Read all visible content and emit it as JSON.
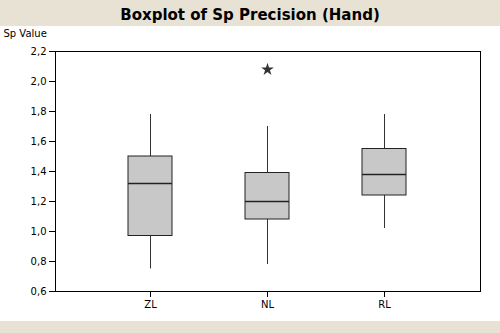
{
  "chart_data": {
    "type": "box",
    "title": "Boxplot of Sp Precision (Hand)",
    "ylabel": "Sp Value",
    "categories": [
      "ZL",
      "NL",
      "RL"
    ],
    "boxes": [
      {
        "med": 1.32,
        "q1": 0.97,
        "q3": 1.5,
        "whislo": 0.75,
        "whishi": 1.78,
        "fliers": []
      },
      {
        "med": 1.2,
        "q1": 1.08,
        "q3": 1.39,
        "whislo": 0.78,
        "whishi": 1.7,
        "fliers": [
          2.08
        ]
      },
      {
        "med": 1.38,
        "q1": 1.24,
        "q3": 1.55,
        "whislo": 1.02,
        "whishi": 1.78,
        "fliers": []
      }
    ],
    "color": "#c8c8c8",
    "grid": false,
    "ylim": [
      0.6,
      2.2
    ],
    "yticks": [
      {
        "value": 0.6,
        "label": "0,6"
      },
      {
        "value": 0.8,
        "label": "0,8"
      },
      {
        "value": 1.0,
        "label": "1,0"
      },
      {
        "value": 1.2,
        "label": "1,2"
      },
      {
        "value": 1.4,
        "label": "1,4"
      },
      {
        "value": 1.6,
        "label": "1,6"
      },
      {
        "value": 1.8,
        "label": "1,8"
      },
      {
        "value": 2.0,
        "label": "2,0"
      },
      {
        "value": 2.2,
        "label": "2,2"
      }
    ]
  }
}
